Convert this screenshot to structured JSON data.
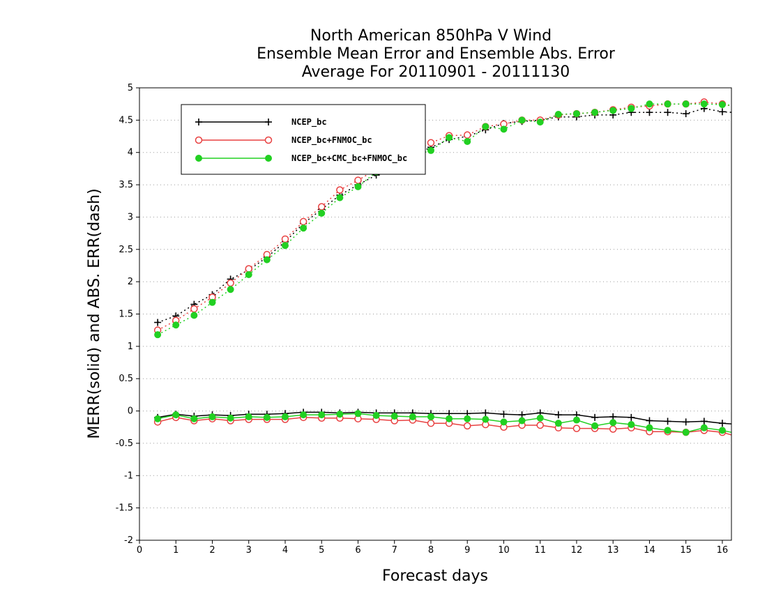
{
  "chart_data": {
    "type": "line",
    "title_lines": [
      "North American 850hPa V Wind",
      "Ensemble Mean Error and Ensemble Abs. Error",
      "Average For 20110901 - 20111130"
    ],
    "xlabel": "Forecast days",
    "ylabel": "MERR(solid) and ABS. ERR(dash)",
    "xlim": [
      0,
      16.25
    ],
    "ylim": [
      -2,
      5
    ],
    "x_ticks": [
      0,
      1,
      2,
      3,
      4,
      5,
      6,
      7,
      8,
      9,
      10,
      11,
      12,
      13,
      14,
      15,
      16
    ],
    "y_ticks": [
      -2,
      -1.5,
      -1,
      -0.5,
      0,
      0.5,
      1,
      1.5,
      2,
      2.5,
      3,
      3.5,
      4,
      4.5,
      5
    ],
    "y_tick_labels": [
      "-2",
      "-1.5",
      "-1",
      "-0.5",
      "0",
      "0.5",
      "1",
      "1.5",
      "2",
      "2.5",
      "3",
      "3.5",
      "4",
      "4.5",
      "5"
    ],
    "grid": "horizontal dotted",
    "legend_position": "top-left",
    "x": [
      0.5,
      1,
      1.5,
      2,
      2.5,
      3,
      3.5,
      4,
      4.5,
      5,
      5.5,
      6,
      6.5,
      7,
      7.5,
      8,
      8.5,
      9,
      9.5,
      10,
      10.5,
      11,
      11.5,
      12,
      12.5,
      13,
      13.5,
      14,
      14.5,
      15,
      15.5,
      16,
      16.25
    ],
    "series": [
      {
        "name": "NCEP_bc",
        "color": "#000000",
        "marker": "plus",
        "abs_err": [
          1.37,
          1.47,
          1.65,
          1.8,
          2.04,
          2.18,
          2.38,
          2.62,
          2.9,
          3.12,
          3.34,
          3.5,
          3.65,
          3.8,
          3.95,
          4.08,
          4.2,
          4.25,
          4.35,
          4.45,
          4.48,
          4.5,
          4.55,
          4.55,
          4.58,
          4.58,
          4.62,
          4.62,
          4.62,
          4.6,
          4.68,
          4.63,
          4.62
        ],
        "mean_err": [
          -0.1,
          -0.05,
          -0.08,
          -0.06,
          -0.07,
          -0.05,
          -0.05,
          -0.04,
          -0.02,
          -0.02,
          -0.03,
          -0.02,
          -0.03,
          -0.03,
          -0.03,
          -0.04,
          -0.04,
          -0.04,
          -0.03,
          -0.05,
          -0.06,
          -0.03,
          -0.06,
          -0.06,
          -0.1,
          -0.09,
          -0.1,
          -0.15,
          -0.16,
          -0.17,
          -0.16,
          -0.19,
          -0.2
        ]
      },
      {
        "name": "NCEP_bc+FNMOC_bc",
        "color": "#e84040",
        "marker": "open-circle",
        "abs_err": [
          1.25,
          1.4,
          1.58,
          1.76,
          1.98,
          2.2,
          2.42,
          2.66,
          2.93,
          3.16,
          3.42,
          3.57,
          3.74,
          3.9,
          4.0,
          4.15,
          4.26,
          4.27,
          4.4,
          4.44,
          4.5,
          4.5,
          4.58,
          4.6,
          4.62,
          4.66,
          4.7,
          4.72,
          4.75,
          4.75,
          4.78,
          4.75,
          4.72
        ],
        "mean_err": [
          -0.17,
          -0.1,
          -0.15,
          -0.12,
          -0.15,
          -0.13,
          -0.13,
          -0.13,
          -0.1,
          -0.11,
          -0.11,
          -0.12,
          -0.13,
          -0.15,
          -0.14,
          -0.19,
          -0.19,
          -0.23,
          -0.21,
          -0.25,
          -0.22,
          -0.22,
          -0.26,
          -0.27,
          -0.27,
          -0.28,
          -0.26,
          -0.32,
          -0.32,
          -0.33,
          -0.3,
          -0.33,
          -0.37
        ]
      },
      {
        "name": "NCEP_bc+CMC_bc+FNMOC_bc",
        "color": "#22d022",
        "marker": "filled-circle",
        "abs_err": [
          1.18,
          1.33,
          1.48,
          1.68,
          1.88,
          2.11,
          2.34,
          2.56,
          2.83,
          3.06,
          3.3,
          3.47,
          3.7,
          3.85,
          3.95,
          4.03,
          4.23,
          4.17,
          4.4,
          4.36,
          4.5,
          4.47,
          4.59,
          4.6,
          4.62,
          4.65,
          4.68,
          4.75,
          4.75,
          4.75,
          4.75,
          4.74,
          4.73
        ],
        "mean_err": [
          -0.12,
          -0.06,
          -0.12,
          -0.09,
          -0.11,
          -0.09,
          -0.1,
          -0.09,
          -0.06,
          -0.06,
          -0.05,
          -0.04,
          -0.07,
          -0.08,
          -0.09,
          -0.09,
          -0.12,
          -0.12,
          -0.13,
          -0.17,
          -0.15,
          -0.11,
          -0.19,
          -0.14,
          -0.23,
          -0.18,
          -0.21,
          -0.26,
          -0.3,
          -0.33,
          -0.26,
          -0.3,
          -0.33
        ]
      }
    ]
  }
}
